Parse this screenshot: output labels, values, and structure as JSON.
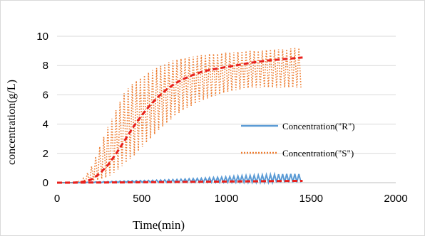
{
  "chart_data": {
    "type": "line",
    "title": "",
    "xlabel": "Time(min)",
    "ylabel": "concentration(g/L)",
    "xlim": [
      0,
      2000
    ],
    "ylim": [
      0,
      10
    ],
    "xticks": [
      "0",
      "500",
      "1000",
      "1500",
      "2000"
    ],
    "yticks": [
      "0",
      "2",
      "4",
      "6",
      "8",
      "10"
    ],
    "grid": "horizontal",
    "legend": {
      "position": "right",
      "entries": [
        "Concentration(\"R\")",
        "Concentration(\"S\")"
      ]
    },
    "colors": {
      "R": "#5b9bd5",
      "S": "#ed7d31",
      "fit": "#e8201c",
      "grid": "#d9d9d9",
      "frame": "#d9d9d9"
    },
    "series": [
      {
        "name": "Concentration(\"R\")",
        "style": "solid",
        "color": "#5b9bd5",
        "x": [
          0,
          100,
          150,
          200,
          250,
          300,
          350,
          400,
          450,
          500,
          550,
          600,
          650,
          700,
          750,
          800,
          850,
          900,
          950,
          1000,
          1050,
          1100,
          1150,
          1200,
          1250,
          1300,
          1350,
          1400,
          1450
        ],
        "min": [
          0,
          0,
          0,
          0.01,
          0.01,
          0.01,
          0.01,
          0.02,
          0.02,
          0.02,
          0.02,
          0.02,
          0.02,
          0.02,
          0.03,
          0.03,
          0.03,
          0.03,
          0.03,
          0.03,
          0.03,
          0.03,
          0.03,
          0.03,
          0.03,
          0.03,
          0.03,
          0.03,
          0.03
        ],
        "max": [
          0,
          0,
          0.02,
          0.04,
          0.06,
          0.08,
          0.1,
          0.12,
          0.14,
          0.15,
          0.16,
          0.18,
          0.2,
          0.22,
          0.25,
          0.28,
          0.3,
          0.34,
          0.37,
          0.4,
          0.44,
          0.48,
          0.5,
          0.52,
          0.55,
          0.57,
          0.6,
          0.6,
          0.58
        ]
      },
      {
        "name": "Concentration(\"S\")",
        "style": "dotted",
        "color": "#ed7d31",
        "x": [
          0,
          100,
          150,
          200,
          250,
          300,
          350,
          400,
          450,
          500,
          550,
          600,
          650,
          700,
          750,
          800,
          850,
          900,
          950,
          1000,
          1050,
          1100,
          1150,
          1200,
          1250,
          1300,
          1350,
          1400,
          1450
        ],
        "min": [
          0,
          0,
          0,
          0.1,
          0.2,
          0.4,
          0.8,
          1.3,
          1.8,
          2.4,
          3.0,
          3.6,
          4.1,
          4.6,
          5.0,
          5.3,
          5.6,
          5.8,
          6.0,
          6.2,
          6.3,
          6.4,
          6.5,
          6.5,
          6.5,
          6.5,
          6.5,
          6.5,
          6.5
        ],
        "max": [
          0,
          0,
          0.2,
          1.0,
          2.4,
          3.8,
          5.0,
          6.2,
          6.8,
          7.2,
          7.6,
          7.9,
          8.2,
          8.4,
          8.5,
          8.6,
          8.7,
          8.8,
          8.8,
          8.9,
          8.9,
          9.0,
          9.0,
          9.0,
          9.1,
          9.1,
          9.1,
          9.2,
          9.2
        ]
      },
      {
        "name": "",
        "style": "dashed",
        "color": "#e8201c",
        "x": [
          0,
          100,
          150,
          200,
          250,
          300,
          350,
          400,
          450,
          500,
          550,
          600,
          650,
          700,
          750,
          800,
          850,
          900,
          950,
          1000,
          1050,
          1100,
          1150,
          1200,
          1250,
          1300,
          1350,
          1400,
          1450
        ],
        "y": [
          0,
          0,
          0.05,
          0.2,
          0.6,
          1.2,
          2.0,
          2.9,
          3.8,
          4.6,
          5.3,
          5.9,
          6.4,
          6.8,
          7.1,
          7.35,
          7.55,
          7.7,
          7.8,
          7.9,
          8.0,
          8.1,
          8.2,
          8.28,
          8.35,
          8.4,
          8.45,
          8.5,
          8.55
        ]
      },
      {
        "name": "",
        "style": "dashed",
        "color": "#e8201c",
        "x": [
          0,
          200,
          400,
          600,
          800,
          1000,
          1200,
          1400,
          1450
        ],
        "y": [
          0,
          0.01,
          0.02,
          0.04,
          0.06,
          0.08,
          0.1,
          0.12,
          0.12
        ]
      }
    ]
  }
}
